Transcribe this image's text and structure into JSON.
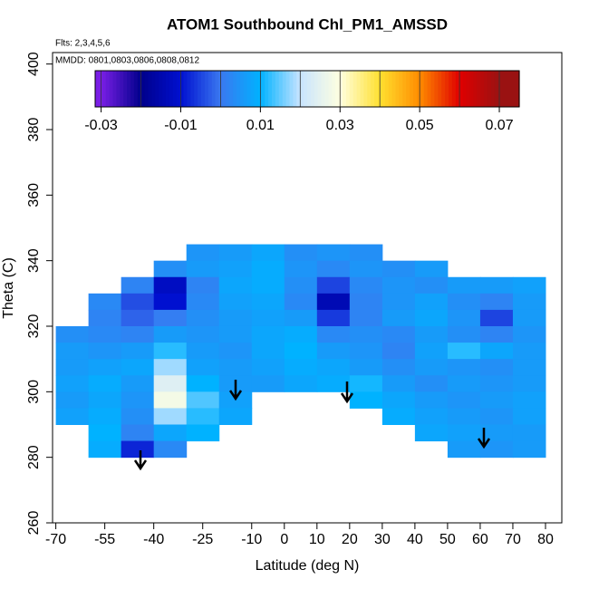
{
  "chart_data": {
    "type": "heatmap",
    "title": "ATOM1 Southbound Chl_PM1_AMSSD",
    "subtitle": "Flts: 2,3,4,5,6",
    "annotation": "MMDD: 0801,0803,0806,0808,0812",
    "x_label": "Latitude (deg N)",
    "y_label": "Theta (C)",
    "xlim": [
      -71,
      85
    ],
    "ylim": [
      260,
      403.5
    ],
    "xticks": [
      -70,
      -55,
      -40,
      -25,
      -10,
      0,
      10,
      20,
      30,
      40,
      50,
      60,
      70,
      80
    ],
    "yticks": [
      260,
      280,
      300,
      320,
      340,
      360,
      380,
      400
    ],
    "x": [
      -65,
      -55,
      -45,
      -35,
      -25,
      -15,
      -5,
      5,
      15,
      25,
      35,
      45,
      55,
      65,
      75
    ],
    "y": [
      342.5,
      337.5,
      332.5,
      327.5,
      322.5,
      317.5,
      312.5,
      307.5,
      302.5,
      297.5,
      292.5,
      287.5,
      282.5
    ],
    "values": [
      [
        null,
        null,
        null,
        null,
        0.005,
        0.006,
        0.008,
        0.004,
        0.005,
        0.004,
        null,
        null,
        null,
        null,
        null
      ],
      [
        null,
        null,
        null,
        0.004,
        0.006,
        0.007,
        0.009,
        0.005,
        0.003,
        0.005,
        0.004,
        0.006,
        null,
        null,
        null
      ],
      [
        null,
        null,
        0.002,
        -0.012,
        0.002,
        0.008,
        0.009,
        0.004,
        -0.005,
        0.003,
        0.005,
        0.004,
        0.006,
        0.006,
        0.007
      ],
      [
        null,
        0.003,
        -0.004,
        -0.01,
        0.003,
        0.007,
        0.008,
        0.003,
        -0.014,
        0.002,
        0.005,
        0.007,
        0.004,
        0.002,
        0.006
      ],
      [
        null,
        0.002,
        -0.002,
        0.001,
        0.004,
        0.006,
        0.007,
        0.006,
        -0.006,
        0.002,
        0.006,
        0.008,
        0.005,
        -0.005,
        0.006
      ],
      [
        0.004,
        0.003,
        0.002,
        0.006,
        0.005,
        0.006,
        0.008,
        0.009,
        0.003,
        0.004,
        0.003,
        0.006,
        0.004,
        0.002,
        0.005
      ],
      [
        0.006,
        0.005,
        0.006,
        0.012,
        0.006,
        0.005,
        0.008,
        0.01,
        0.006,
        0.005,
        0.002,
        0.007,
        0.012,
        0.008,
        0.006
      ],
      [
        0.006,
        0.007,
        0.008,
        0.018,
        0.007,
        0.006,
        0.007,
        0.009,
        0.008,
        0.006,
        0.004,
        0.006,
        0.005,
        0.004,
        0.006
      ],
      [
        0.007,
        0.009,
        0.006,
        0.024,
        0.01,
        0.006,
        0.006,
        0.008,
        0.009,
        0.011,
        0.006,
        0.004,
        0.006,
        0.005,
        0.006
      ],
      [
        0.006,
        0.008,
        0.005,
        0.028,
        0.014,
        0.007,
        null,
        null,
        null,
        0.01,
        0.008,
        0.006,
        0.005,
        0.006,
        0.007
      ],
      [
        0.007,
        0.009,
        0.004,
        0.018,
        0.012,
        0.008,
        null,
        null,
        null,
        null,
        0.009,
        0.007,
        0.006,
        0.005,
        0.007
      ],
      [
        null,
        0.01,
        0.002,
        0.008,
        0.01,
        null,
        null,
        null,
        null,
        null,
        null,
        0.008,
        0.007,
        0.006,
        0.006
      ],
      [
        null,
        0.009,
        -0.008,
        0.003,
        null,
        null,
        null,
        null,
        null,
        null,
        null,
        null,
        0.006,
        0.005,
        0.006
      ]
    ],
    "colorbar": {
      "lim": [
        -0.0315,
        0.075
      ],
      "ticks": [
        -0.03,
        -0.01,
        0.01,
        0.03,
        0.05,
        0.07
      ],
      "stops": [
        -0.03,
        -0.02,
        -0.01,
        0,
        0.01,
        0.02,
        0.03,
        0.04,
        0.05,
        0.06,
        0.07
      ],
      "colors": [
        "#7a1ee6",
        "#00008b",
        "#0010d0",
        "#3a78f0",
        "#00b2ff",
        "#c8e4ff",
        "#ffffe0",
        "#ffe030",
        "#ff8c00",
        "#e00000",
        "#9a1212"
      ]
    }
  }
}
